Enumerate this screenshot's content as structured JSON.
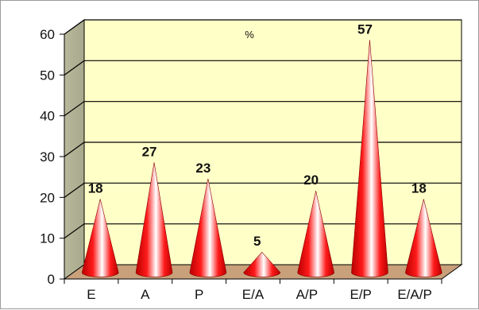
{
  "chart_data": {
    "type": "bar",
    "style": "3d-cone",
    "title": "%",
    "xlabel": "",
    "ylabel": "",
    "categories": [
      "E",
      "A",
      "P",
      "E/A",
      "A/P",
      "E/P",
      "E/A/P"
    ],
    "values": [
      18,
      27,
      23,
      5,
      20,
      57,
      18
    ],
    "data_labels": [
      "18",
      "27",
      "23",
      "5",
      "20",
      "57",
      "18"
    ],
    "ylim": [
      0,
      60
    ],
    "yticks": [
      "0",
      "10",
      "20",
      "30",
      "40",
      "50",
      "60"
    ],
    "grid": true,
    "legend": "none",
    "colors": {
      "plot_back": "#ffffc8",
      "side_wall": "#a8a88c",
      "floor": "#c8a07a",
      "cone_dark": "#b80000",
      "cone_mid": "#ff1a1a",
      "cone_light": "#ffffff",
      "gridline": "#000000"
    }
  }
}
